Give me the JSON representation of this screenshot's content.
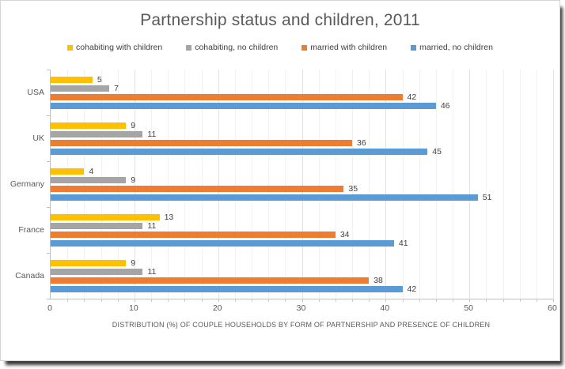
{
  "chart_data": {
    "type": "bar",
    "orientation": "horizontal",
    "title": "Partnership status and children, 2011",
    "categories": [
      "USA",
      "UK",
      "Germany",
      "France",
      "Canada"
    ],
    "series": [
      {
        "name": "cohabiting with children",
        "color": "#FFC000",
        "values": [
          5,
          9,
          4,
          13,
          9
        ]
      },
      {
        "name": "cohabiting, no children",
        "color": "#A5A5A5",
        "values": [
          7,
          11,
          9,
          11,
          11
        ]
      },
      {
        "name": "married with children",
        "color": "#ED7D31",
        "values": [
          42,
          36,
          35,
          34,
          38
        ]
      },
      {
        "name": "married, no children",
        "color": "#5B9BD5",
        "values": [
          46,
          45,
          51,
          41,
          42
        ]
      }
    ],
    "series_display_order": "top-to-bottom within each category group",
    "xlabel": "DISTRIBUTION (%) OF COUPLE HOUSEHOLDS BY FORM OF PARTNERSHIP AND PRESENCE OF CHILDREN",
    "ylabel": "",
    "xlim": [
      0,
      60
    ],
    "x_ticks": [
      0,
      10,
      20,
      30,
      40,
      50,
      60
    ],
    "minor_grid_interval": 2,
    "grid": true,
    "legend_position": "top",
    "data_labels": true
  }
}
